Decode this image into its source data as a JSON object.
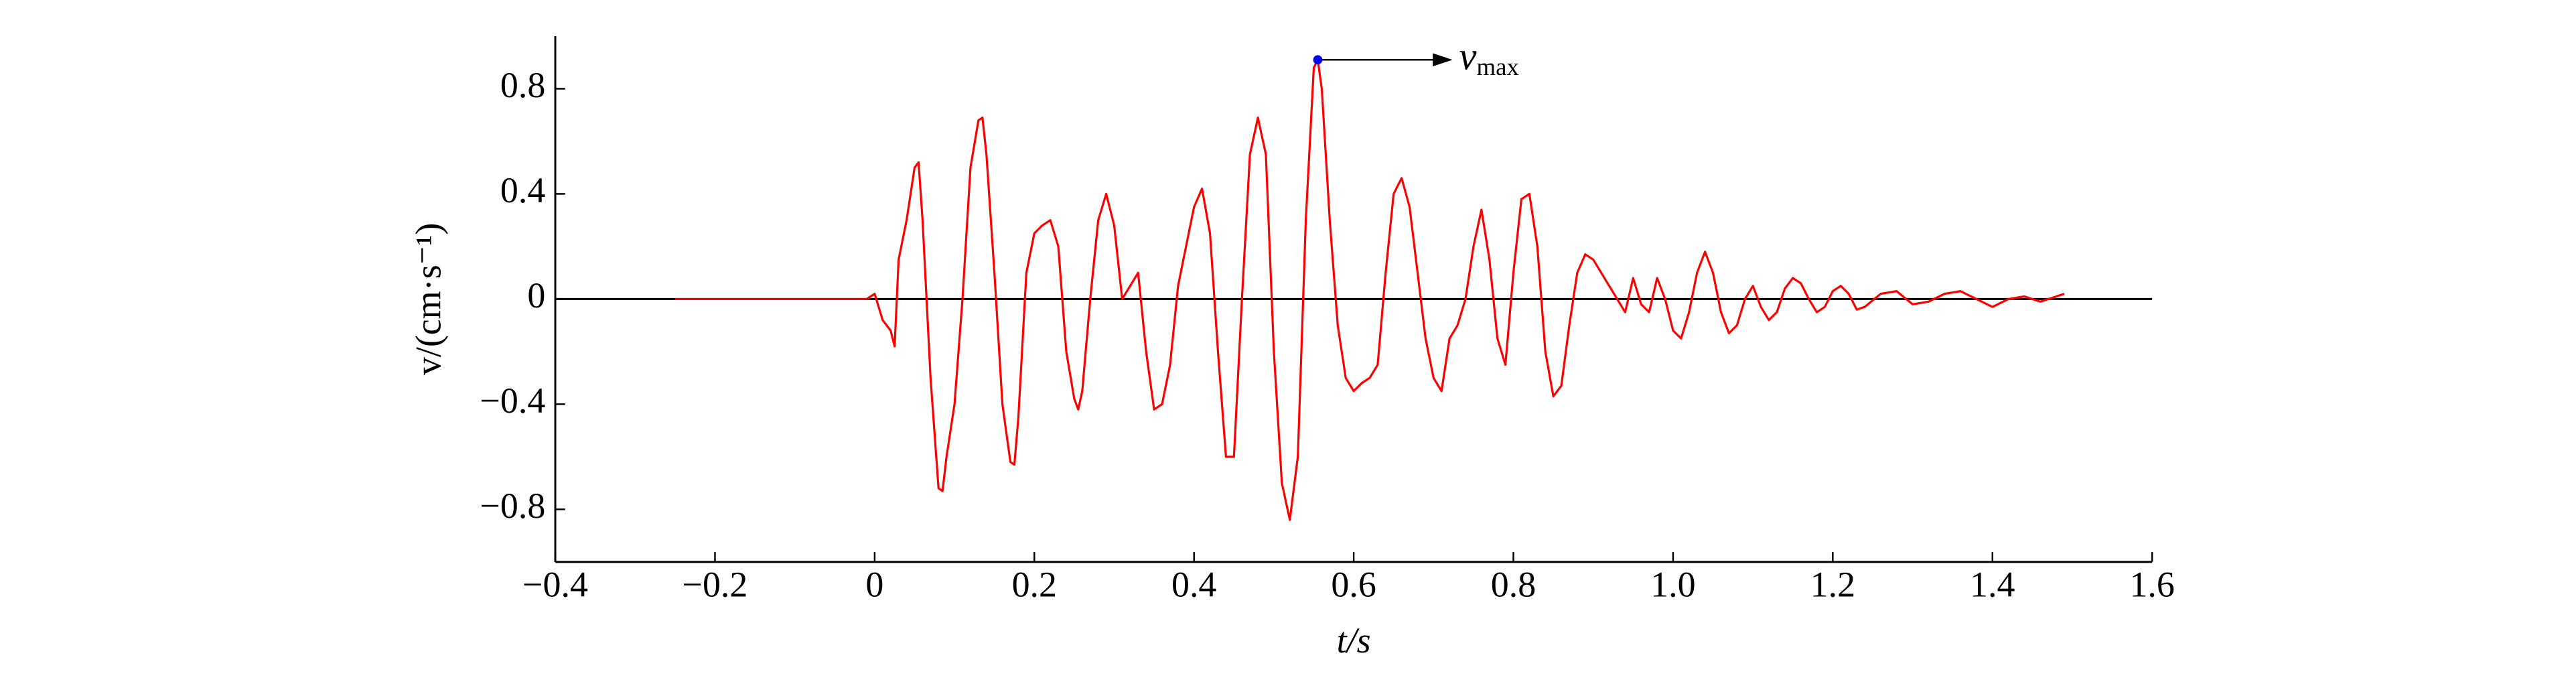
{
  "chart_data": {
    "type": "line",
    "x_label": "t/s",
    "y_label": "v/(cm·s⁻¹)",
    "xlim": [
      -0.4,
      1.6
    ],
    "ylim": [
      -1,
      1
    ],
    "xticks": [
      {
        "value": -0.4,
        "label": "−0.4"
      },
      {
        "value": -0.2,
        "label": "−0.2"
      },
      0,
      0.2,
      0.4,
      0.6,
      0.8,
      {
        "value": 1.0,
        "label": "1.0"
      },
      1.2,
      1.4,
      1.6
    ],
    "yticks": [
      {
        "value": -0.8,
        "label": "−0.8"
      },
      {
        "value": -0.4,
        "label": "−0.4"
      },
      0,
      0.4,
      0.8
    ],
    "annotation": {
      "text": "v",
      "subscript": "max",
      "x": 0.555,
      "y": 0.91,
      "color": "#0000ff"
    },
    "series": [
      {
        "name": "v",
        "color": "#ff0000",
        "x": [
          -0.25,
          -0.2,
          -0.15,
          -0.1,
          -0.05,
          -0.01,
          0.0,
          0.01,
          0.02,
          0.025,
          0.03,
          0.04,
          0.05,
          0.055,
          0.06,
          0.07,
          0.08,
          0.085,
          0.09,
          0.1,
          0.11,
          0.12,
          0.13,
          0.135,
          0.14,
          0.15,
          0.16,
          0.17,
          0.175,
          0.18,
          0.19,
          0.2,
          0.21,
          0.22,
          0.23,
          0.24,
          0.25,
          0.255,
          0.26,
          0.27,
          0.28,
          0.29,
          0.3,
          0.31,
          0.32,
          0.33,
          0.34,
          0.35,
          0.36,
          0.37,
          0.38,
          0.39,
          0.4,
          0.41,
          0.42,
          0.43,
          0.44,
          0.45,
          0.46,
          0.47,
          0.48,
          0.49,
          0.5,
          0.51,
          0.52,
          0.53,
          0.54,
          0.55,
          0.555,
          0.56,
          0.57,
          0.58,
          0.59,
          0.6,
          0.61,
          0.62,
          0.63,
          0.64,
          0.65,
          0.66,
          0.67,
          0.68,
          0.69,
          0.7,
          0.71,
          0.72,
          0.73,
          0.74,
          0.75,
          0.76,
          0.77,
          0.78,
          0.79,
          0.8,
          0.81,
          0.82,
          0.83,
          0.84,
          0.85,
          0.86,
          0.87,
          0.88,
          0.89,
          0.9,
          0.91,
          0.92,
          0.93,
          0.94,
          0.95,
          0.96,
          0.97,
          0.98,
          0.99,
          1.0,
          1.01,
          1.02,
          1.03,
          1.04,
          1.05,
          1.06,
          1.07,
          1.08,
          1.09,
          1.1,
          1.11,
          1.12,
          1.13,
          1.14,
          1.15,
          1.16,
          1.17,
          1.18,
          1.19,
          1.2,
          1.21,
          1.22,
          1.23,
          1.24,
          1.26,
          1.28,
          1.3,
          1.32,
          1.34,
          1.36,
          1.38,
          1.4,
          1.42,
          1.44,
          1.46,
          1.48,
          1.49
        ],
        "values": [
          0,
          0,
          0,
          0,
          0,
          0,
          0.02,
          -0.08,
          -0.12,
          -0.18,
          0.15,
          0.3,
          0.5,
          0.52,
          0.3,
          -0.3,
          -0.72,
          -0.73,
          -0.6,
          -0.4,
          0.0,
          0.5,
          0.68,
          0.69,
          0.55,
          0.1,
          -0.4,
          -0.62,
          -0.63,
          -0.45,
          0.1,
          0.25,
          0.28,
          0.3,
          0.2,
          -0.2,
          -0.38,
          -0.42,
          -0.35,
          0.0,
          0.3,
          0.4,
          0.28,
          0.0,
          0.05,
          0.1,
          -0.2,
          -0.42,
          -0.4,
          -0.25,
          0.05,
          0.2,
          0.35,
          0.42,
          0.25,
          -0.2,
          -0.6,
          -0.6,
          0.0,
          0.55,
          0.69,
          0.55,
          -0.2,
          -0.7,
          -0.84,
          -0.6,
          0.3,
          0.88,
          0.91,
          0.8,
          0.3,
          -0.1,
          -0.3,
          -0.35,
          -0.32,
          -0.3,
          -0.25,
          0.1,
          0.4,
          0.46,
          0.35,
          0.1,
          -0.15,
          -0.3,
          -0.35,
          -0.15,
          -0.1,
          0.0,
          0.2,
          0.34,
          0.15,
          -0.15,
          -0.25,
          0.1,
          0.38,
          0.4,
          0.2,
          -0.2,
          -0.37,
          -0.33,
          -0.1,
          0.1,
          0.17,
          0.15,
          0.1,
          0.05,
          0.0,
          -0.05,
          0.08,
          -0.02,
          -0.05,
          0.08,
          0.0,
          -0.12,
          -0.15,
          -0.05,
          0.1,
          0.18,
          0.1,
          -0.05,
          -0.13,
          -0.1,
          0.0,
          0.05,
          -0.03,
          -0.08,
          -0.05,
          0.04,
          0.08,
          0.06,
          0.0,
          -0.05,
          -0.03,
          0.03,
          0.05,
          0.02,
          -0.04,
          -0.03,
          0.02,
          0.03,
          -0.02,
          -0.01,
          0.02,
          0.03,
          0.0,
          -0.03,
          0.0,
          0.01,
          -0.01,
          0.01,
          0.02
        ]
      }
    ]
  }
}
